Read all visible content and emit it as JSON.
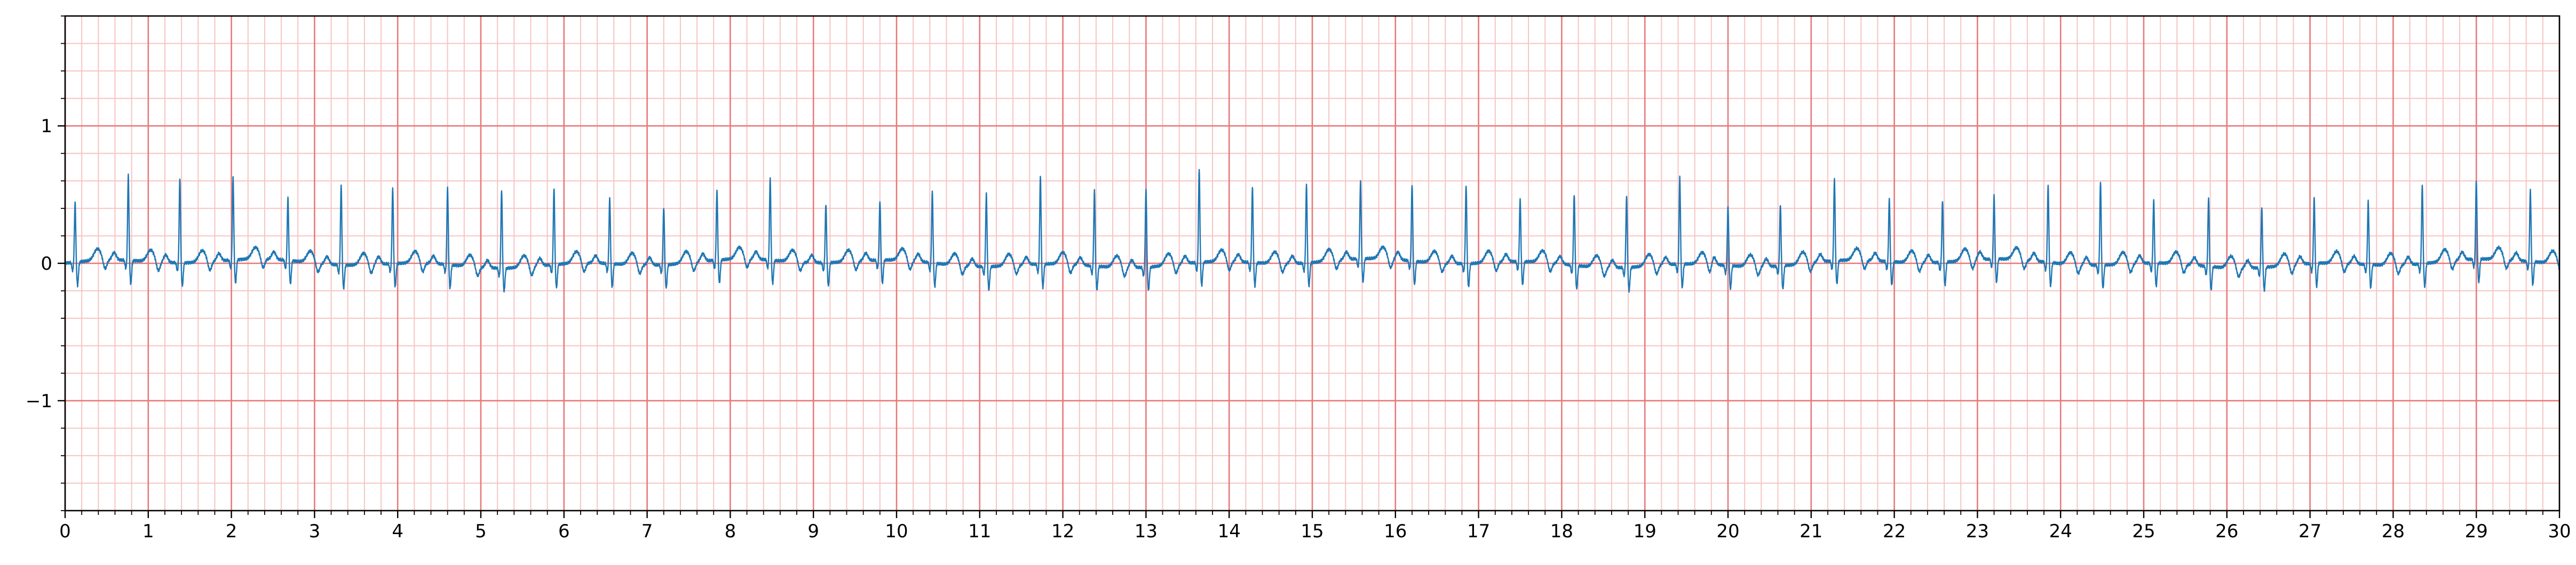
{
  "chart_data": {
    "type": "line",
    "title": "",
    "xlabel": "",
    "ylabel": "",
    "xlim": [
      0,
      30
    ],
    "ylim": [
      -1.8,
      1.8
    ],
    "x_ticks": [
      "0",
      "1",
      "2",
      "3",
      "4",
      "5",
      "6",
      "7",
      "8",
      "9",
      "10",
      "11",
      "12",
      "13",
      "14",
      "15",
      "16",
      "17",
      "18",
      "19",
      "20",
      "21",
      "22",
      "23",
      "24",
      "25",
      "26",
      "27",
      "28",
      "29",
      "30"
    ],
    "y_ticks": [
      {
        "value": 1,
        "label": "1"
      },
      {
        "value": 0,
        "label": "0"
      },
      {
        "value": -1,
        "label": "−1"
      }
    ],
    "grid": {
      "major": true,
      "minor": true,
      "major_x_step": 1,
      "major_y_step": 1,
      "minor_x_step": 0.2,
      "minor_y_step": 0.2,
      "major_color": "#e8797a",
      "minor_color": "#f7c4c4"
    },
    "series": [
      {
        "line_color": "#1f77b4",
        "beat_times": [
          0.12,
          0.76,
          1.38,
          2.02,
          2.68,
          3.32,
          3.94,
          4.6,
          5.25,
          5.88,
          6.55,
          7.2,
          7.84,
          8.48,
          9.15,
          9.8,
          10.43,
          11.08,
          11.73,
          12.38,
          13.0,
          13.64,
          14.28,
          14.93,
          15.58,
          16.2,
          16.85,
          17.5,
          18.15,
          18.78,
          19.42,
          20.0,
          20.63,
          21.28,
          21.94,
          22.58,
          23.2,
          23.85,
          24.48,
          25.12,
          25.78,
          26.42,
          27.05,
          27.7,
          28.35,
          29.0,
          29.65
        ],
        "r_peak_values": [
          0.44,
          0.62,
          0.62,
          0.6,
          0.46,
          0.58,
          0.55,
          0.56,
          0.57,
          0.56,
          0.48,
          0.42,
          0.51,
          0.6,
          0.43,
          0.43,
          0.52,
          0.53,
          0.64,
          0.55,
          0.57,
          0.68,
          0.55,
          0.57,
          0.56,
          0.56,
          0.57,
          0.46,
          0.52,
          0.52,
          0.63,
          0.43,
          0.45,
          0.6,
          0.46,
          0.45,
          0.46,
          0.56,
          0.61,
          0.46,
          0.5,
          0.44,
          0.48,
          0.46,
          0.57,
          0.57,
          0.52
        ],
        "baseline_level": 0.0,
        "s_wave_depth": -0.17
      }
    ]
  }
}
